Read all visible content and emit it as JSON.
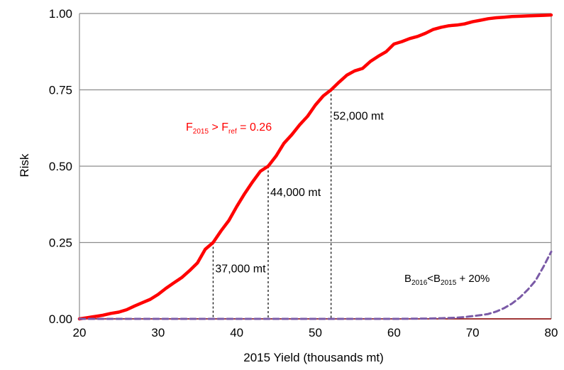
{
  "chart_data": {
    "type": "line",
    "xlabel": "2015 Yield (thousands mt)",
    "ylabel": "Risk",
    "xlim": [
      20,
      80
    ],
    "ylim": [
      0,
      1
    ],
    "x_ticks": [
      "20",
      "30",
      "40",
      "50",
      "60",
      "70",
      "80"
    ],
    "y_ticks": [
      "0.00",
      "0.25",
      "0.50",
      "0.75",
      "1.00"
    ],
    "grid": "horizontal",
    "series": [
      {
        "id": "f_ref",
        "color": "#ff0000",
        "style": "solid",
        "x": [
          20,
          21,
          22,
          23,
          24,
          25,
          26,
          27,
          28,
          29,
          30,
          31,
          32,
          33,
          34,
          35,
          36,
          37,
          38,
          39,
          40,
          41,
          42,
          43,
          44,
          45,
          46,
          47,
          48,
          49,
          50,
          51,
          52,
          53,
          54,
          55,
          56,
          57,
          58,
          59,
          60,
          61,
          62,
          63,
          64,
          65,
          66,
          67,
          68,
          69,
          70,
          71,
          72,
          73,
          74,
          75,
          76,
          77,
          78,
          79,
          80
        ],
        "values": [
          0.0,
          0.004,
          0.008,
          0.012,
          0.018,
          0.022,
          0.03,
          0.042,
          0.053,
          0.064,
          0.08,
          0.1,
          0.118,
          0.135,
          0.158,
          0.183,
          0.228,
          0.25,
          0.288,
          0.322,
          0.368,
          0.41,
          0.448,
          0.483,
          0.5,
          0.533,
          0.575,
          0.603,
          0.635,
          0.663,
          0.7,
          0.73,
          0.75,
          0.775,
          0.798,
          0.812,
          0.82,
          0.843,
          0.86,
          0.875,
          0.9,
          0.908,
          0.918,
          0.925,
          0.935,
          0.948,
          0.955,
          0.96,
          0.962,
          0.966,
          0.973,
          0.978,
          0.983,
          0.986,
          0.988,
          0.99,
          0.991,
          0.992,
          0.993,
          0.994,
          0.995
        ]
      },
      {
        "id": "biomass",
        "color": "#7a5aa6",
        "style": "dashed",
        "x": [
          20,
          30,
          40,
          50,
          60,
          64,
          66,
          68,
          69,
          70,
          71,
          72,
          73,
          74,
          75,
          76,
          77,
          78,
          79,
          80
        ],
        "values": [
          0.0,
          0.0,
          0.0,
          0.0,
          0.0,
          0.001,
          0.002,
          0.004,
          0.006,
          0.009,
          0.012,
          0.016,
          0.024,
          0.035,
          0.05,
          0.07,
          0.095,
          0.125,
          0.17,
          0.22
        ]
      }
    ],
    "markers": [
      {
        "x": 37,
        "y": 0.25,
        "label": "37,000 mt"
      },
      {
        "x": 44,
        "y": 0.5,
        "label": "44,000 mt"
      },
      {
        "x": 52,
        "y": 0.75,
        "label": "52,000 mt"
      }
    ],
    "annotations": {
      "f_ref": {
        "f_base": "F",
        "f_sub": "2015",
        "gt": " > F",
        "ref_sub": "ref",
        "eq": " =  0.26",
        "color": "#ff0000"
      },
      "biomass": {
        "b_base": "B",
        "b_sub1": "2016",
        "lt": "<B",
        "b_sub2": "2015",
        "rest": " + 20%",
        "color": "#000000"
      }
    }
  }
}
